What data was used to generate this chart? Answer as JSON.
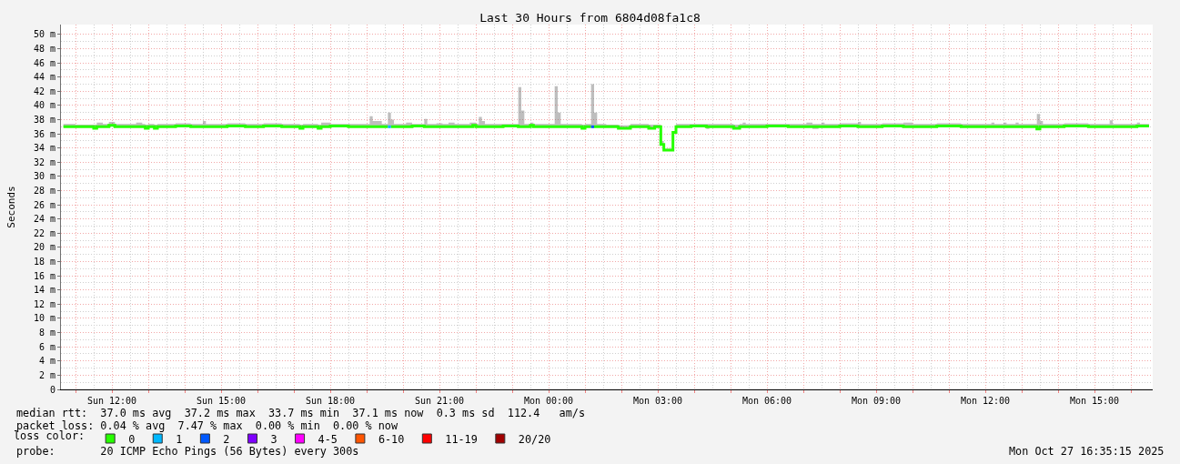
{
  "chart_data": {
    "type": "step",
    "title": "Last 30 Hours from 6804d08fa1c8",
    "ylabel": "Seconds",
    "legend_title": "loss color:",
    "legend": "bottom left",
    "grid": true,
    "xlim": [
      "2025-10-26T10:36",
      "2025-10-27T16:36"
    ],
    "xticks": [
      {
        "value": "2025-10-26T11:00",
        "label": null
      },
      {
        "value": "2025-10-26T12:00",
        "label": "Sun 12:00"
      },
      {
        "value": "2025-10-26T13:00",
        "label": null
      },
      {
        "value": "2025-10-26T14:00",
        "label": null
      },
      {
        "value": "2025-10-26T15:00",
        "label": "Sun 15:00"
      },
      {
        "value": "2025-10-26T16:00",
        "label": null
      },
      {
        "value": "2025-10-26T17:00",
        "label": null
      },
      {
        "value": "2025-10-26T18:00",
        "label": "Sun 18:00"
      },
      {
        "value": "2025-10-26T19:00",
        "label": null
      },
      {
        "value": "2025-10-26T20:00",
        "label": null
      },
      {
        "value": "2025-10-26T21:00",
        "label": "Sun 21:00"
      },
      {
        "value": "2025-10-26T22:00",
        "label": null
      },
      {
        "value": "2025-10-26T23:00",
        "label": null
      },
      {
        "value": "2025-10-27T00:00",
        "label": "Mon 00:00"
      },
      {
        "value": "2025-10-27T01:00",
        "label": null
      },
      {
        "value": "2025-10-27T02:00",
        "label": null
      },
      {
        "value": "2025-10-27T03:00",
        "label": "Mon 03:00"
      },
      {
        "value": "2025-10-27T04:00",
        "label": null
      },
      {
        "value": "2025-10-27T05:00",
        "label": null
      },
      {
        "value": "2025-10-27T06:00",
        "label": "Mon 06:00"
      },
      {
        "value": "2025-10-27T07:00",
        "label": null
      },
      {
        "value": "2025-10-27T08:00",
        "label": null
      },
      {
        "value": "2025-10-27T09:00",
        "label": "Mon 09:00"
      },
      {
        "value": "2025-10-27T10:00",
        "label": null
      },
      {
        "value": "2025-10-27T11:00",
        "label": null
      },
      {
        "value": "2025-10-27T12:00",
        "label": "Mon 12:00"
      },
      {
        "value": "2025-10-27T13:00",
        "label": null
      },
      {
        "value": "2025-10-27T14:00",
        "label": null
      },
      {
        "value": "2025-10-27T15:00",
        "label": "Mon 15:00"
      },
      {
        "value": "2025-10-27T16:00",
        "label": null
      }
    ],
    "ylim": [
      0,
      51.4
    ],
    "yticks": [
      0,
      {
        "value": 2,
        "label": "2 m"
      },
      {
        "value": 4,
        "label": "4 m"
      },
      {
        "value": 6,
        "label": "6 m"
      },
      {
        "value": 8,
        "label": "8 m"
      },
      {
        "value": 10,
        "label": "10 m"
      },
      {
        "value": 12,
        "label": "12 m"
      },
      {
        "value": 14,
        "label": "14 m"
      },
      {
        "value": 16,
        "label": "16 m"
      },
      {
        "value": 18,
        "label": "18 m"
      },
      {
        "value": 20,
        "label": "20 m"
      },
      {
        "value": 22,
        "label": "22 m"
      },
      {
        "value": 24,
        "label": "24 m"
      },
      {
        "value": 26,
        "label": "26 m"
      },
      {
        "value": 28,
        "label": "28 m"
      },
      {
        "value": 30,
        "label": "30 m"
      },
      {
        "value": 32,
        "label": "32 m"
      },
      {
        "value": 34,
        "label": "34 m"
      },
      {
        "value": 36,
        "label": "36 m"
      },
      {
        "value": 38,
        "label": "38 m"
      },
      {
        "value": 40,
        "label": "40 m"
      },
      {
        "value": 42,
        "label": "42 m"
      },
      {
        "value": 44,
        "label": "44 m"
      },
      {
        "value": 46,
        "label": "46 m"
      },
      {
        "value": 48,
        "label": "48 m"
      },
      {
        "value": 50,
        "label": "50 m"
      }
    ],
    "x": [
      "2025-10-26T10:40",
      "2025-10-26T11:00",
      "2025-10-26T11:30",
      "2025-10-26T11:35",
      "2025-10-26T11:45",
      "2025-10-26T11:55",
      "2025-10-26T12:05",
      "2025-10-26T12:40",
      "2025-10-26T12:50",
      "2025-10-26T12:55",
      "2025-10-26T13:00",
      "2025-10-26T13:10",
      "2025-10-26T13:15",
      "2025-10-26T13:45",
      "2025-10-26T14:10",
      "2025-10-26T14:30",
      "2025-10-26T14:35",
      "2025-10-26T15:10",
      "2025-10-26T15:40",
      "2025-10-26T16:10",
      "2025-10-26T16:40",
      "2025-10-26T17:10",
      "2025-10-26T17:15",
      "2025-10-26T17:40",
      "2025-10-26T17:45",
      "2025-10-26T18:00",
      "2025-10-26T18:30",
      "2025-10-26T19:05",
      "2025-10-26T19:10",
      "2025-10-26T19:25",
      "2025-10-26T19:35",
      "2025-10-26T19:37",
      "2025-10-26T19:40",
      "2025-10-26T19:45",
      "2025-10-26T20:05",
      "2025-10-26T20:15",
      "2025-10-26T20:35",
      "2025-10-26T20:40",
      "2025-10-26T20:55",
      "2025-10-26T21:05",
      "2025-10-26T21:15",
      "2025-10-26T21:25",
      "2025-10-26T21:50",
      "2025-10-26T21:55",
      "2025-10-26T22:00",
      "2025-10-26T22:05",
      "2025-10-26T22:10",
      "2025-10-26T22:15",
      "2025-10-26T22:45",
      "2025-10-26T23:10",
      "2025-10-26T23:15",
      "2025-10-26T23:20",
      "2025-10-26T23:30",
      "2025-10-26T23:35",
      "2025-10-27T00:10",
      "2025-10-27T00:15",
      "2025-10-27T00:20",
      "2025-10-27T00:55",
      "2025-10-27T01:00",
      "2025-10-27T01:10",
      "2025-10-27T01:12",
      "2025-10-27T01:15",
      "2025-10-27T01:20",
      "2025-10-27T01:35",
      "2025-10-27T01:55",
      "2025-10-27T02:15",
      "2025-10-27T02:45",
      "2025-10-27T02:55",
      "2025-10-27T03:05",
      "2025-10-27T03:10",
      "2025-10-27T03:25",
      "2025-10-27T03:30",
      "2025-10-27T03:55",
      "2025-10-27T04:20",
      "2025-10-27T04:25",
      "2025-10-27T05:05",
      "2025-10-27T05:15",
      "2025-10-27T05:20",
      "2025-10-27T05:25",
      "2025-10-27T06:00",
      "2025-10-27T06:35",
      "2025-10-27T07:05",
      "2025-10-27T07:15",
      "2025-10-27T07:25",
      "2025-10-27T07:30",
      "2025-10-27T07:35",
      "2025-10-27T08:00",
      "2025-10-27T08:30",
      "2025-10-27T08:35",
      "2025-10-27T09:10",
      "2025-10-27T09:45",
      "2025-10-27T10:00",
      "2025-10-27T10:40",
      "2025-10-27T11:20",
      "2025-10-27T12:10",
      "2025-10-27T12:15",
      "2025-10-27T12:30",
      "2025-10-27T12:35",
      "2025-10-27T12:50",
      "2025-10-27T12:55",
      "2025-10-27T13:25",
      "2025-10-27T13:30",
      "2025-10-27T13:35",
      "2025-10-27T14:10",
      "2025-10-27T14:50",
      "2025-10-27T15:25",
      "2025-10-27T15:30",
      "2025-10-27T16:10",
      "2025-10-27T16:15",
      "2025-10-27T16:30"
    ],
    "series": [
      {
        "name": "0",
        "color": "#26ff00",
        "values": [
          37.0,
          37.0,
          36.8,
          37.0,
          37.0,
          37.2,
          37.0,
          37.0,
          37.0,
          36.8,
          37.0,
          36.8,
          37.0,
          37.1,
          37.0,
          37.0,
          37.0,
          37.1,
          37.0,
          37.1,
          37.0,
          36.8,
          37.0,
          36.8,
          37.0,
          37.1,
          37.0,
          37.0,
          37.0,
          37.0,
          37.0,
          null,
          37.0,
          37.0,
          37.0,
          37.1,
          37.0,
          37.0,
          37.0,
          37.0,
          37.0,
          37.0,
          37.0,
          37.2,
          37.0,
          37.0,
          37.0,
          37.0,
          37.1,
          37.0,
          37.0,
          37.0,
          37.2,
          37.0,
          37.0,
          37.0,
          37.0,
          36.8,
          37.0,
          37.0,
          null,
          37.0,
          37.0,
          37.0,
          36.8,
          37.0,
          36.8,
          37.0,
          34.5,
          33.7,
          36.2,
          37.0,
          37.1,
          37.0,
          37.0,
          36.8,
          37.0,
          37.0,
          37.0,
          37.1,
          37.0,
          37.0,
          37.0,
          37.0,
          37.0,
          37.0,
          37.1,
          37.0,
          37.0,
          37.1,
          37.0,
          37.0,
          37.1,
          37.0,
          37.0,
          37.0,
          37.0,
          37.0,
          37.0,
          37.0,
          36.7,
          37.0,
          37.0,
          37.1,
          37.0,
          37.0,
          37.0,
          37.1,
          37.1,
          37.1
        ],
        "lower": [
          37.0,
          37.0,
          36.8,
          37.0,
          37.0,
          37.2,
          37.0,
          37.0,
          37.0,
          36.8,
          37.0,
          36.8,
          37.0,
          37.1,
          37.0,
          37.0,
          37.0,
          37.1,
          37.0,
          37.1,
          37.0,
          36.8,
          37.0,
          36.8,
          37.0,
          37.1,
          37.0,
          37.0,
          37.0,
          37.0,
          37.0,
          37.0,
          37.0,
          37.0,
          37.0,
          37.1,
          37.0,
          37.0,
          37.0,
          37.0,
          37.0,
          37.0,
          37.0,
          37.2,
          37.0,
          37.0,
          37.0,
          37.0,
          37.1,
          37.0,
          37.0,
          37.0,
          37.2,
          37.0,
          37.0,
          37.0,
          37.0,
          36.8,
          37.0,
          37.0,
          37.0,
          37.0,
          37.0,
          37.0,
          36.8,
          37.0,
          36.8,
          37.0,
          34.5,
          33.7,
          36.2,
          37.0,
          37.1,
          36.7,
          37.0,
          36.8,
          37.0,
          37.0,
          37.0,
          37.1,
          37.0,
          37.0,
          36.7,
          37.0,
          37.0,
          37.0,
          37.1,
          37.0,
          37.0,
          37.1,
          37.0,
          37.0,
          37.1,
          37.0,
          37.0,
          37.0,
          37.0,
          37.0,
          37.0,
          37.0,
          36.7,
          37.0,
          37.0,
          37.1,
          37.0,
          37.0,
          37.0,
          37.1,
          37.1,
          37.1
        ],
        "upper": [
          37.4,
          37.3,
          37.3,
          37.6,
          37.4,
          37.7,
          37.4,
          37.6,
          37.4,
          37.3,
          37.4,
          37.3,
          37.4,
          37.5,
          37.4,
          37.8,
          37.4,
          37.5,
          37.4,
          37.5,
          37.4,
          37.3,
          37.4,
          37.3,
          37.6,
          37.4,
          37.4,
          38.5,
          37.8,
          37.4,
          39.0,
          39.0,
          38.0,
          37.4,
          37.6,
          37.4,
          38.1,
          37.4,
          37.5,
          37.4,
          37.6,
          37.4,
          37.6,
          37.6,
          37.4,
          38.4,
          37.8,
          37.4,
          37.4,
          42.6,
          39.3,
          37.4,
          37.6,
          37.4,
          42.7,
          39.0,
          37.4,
          37.3,
          37.4,
          43.0,
          43.0,
          39.0,
          37.4,
          37.3,
          37.2,
          37.4,
          37.3,
          37.3,
          35.0,
          33.9,
          36.3,
          37.4,
          37.4,
          37.4,
          37.4,
          37.3,
          37.4,
          37.6,
          37.4,
          37.4,
          37.4,
          37.6,
          37.4,
          37.4,
          37.6,
          37.4,
          37.5,
          37.7,
          37.4,
          37.5,
          37.6,
          37.4,
          37.5,
          37.4,
          37.6,
          37.4,
          37.6,
          37.4,
          37.6,
          37.4,
          38.8,
          37.8,
          37.4,
          37.5,
          37.4,
          37.9,
          37.4,
          37.6,
          37.4,
          37.4
        ]
      },
      {
        "name": "1",
        "color": "#00b8ff",
        "x": [
          "2025-10-26T19:35",
          "2025-10-26T19:40"
        ],
        "values": [
          37.0,
          37.0
        ]
      },
      {
        "name": "2",
        "color": "#0059ff",
        "x": [
          "2025-10-27T01:10",
          "2025-10-27T01:15"
        ],
        "values": [
          37.0,
          37.0
        ]
      },
      {
        "name": "3",
        "color": "#7e00ff",
        "values": [
          null,
          null,
          null,
          null,
          null,
          null,
          null,
          null,
          null,
          null,
          null,
          null,
          null,
          null,
          null,
          null,
          null,
          null,
          null,
          null,
          null,
          null,
          null,
          null,
          null,
          null,
          null,
          null,
          null,
          null,
          null,
          null,
          null,
          null,
          null,
          null,
          null,
          null,
          null,
          null,
          null,
          null,
          null,
          null,
          null,
          null,
          null,
          null,
          null,
          null,
          null,
          null,
          null,
          null,
          null,
          null,
          null,
          null,
          null,
          null,
          null,
          null,
          null,
          null,
          null,
          null,
          null,
          null,
          null,
          null,
          null,
          null,
          null,
          null,
          null,
          null,
          null,
          null,
          null,
          null,
          null,
          null,
          null,
          null,
          null,
          null,
          null,
          null,
          null,
          null,
          null,
          null,
          null,
          null,
          null,
          null,
          null,
          null,
          null,
          null,
          null,
          null,
          null,
          null,
          null,
          null,
          null,
          null,
          null,
          null
        ]
      },
      {
        "name": "4-5",
        "color": "#ff00ff",
        "values": [
          null,
          null,
          null,
          null,
          null,
          null,
          null,
          null,
          null,
          null,
          null,
          null,
          null,
          null,
          null,
          null,
          null,
          null,
          null,
          null,
          null,
          null,
          null,
          null,
          null,
          null,
          null,
          null,
          null,
          null,
          null,
          null,
          null,
          null,
          null,
          null,
          null,
          null,
          null,
          null,
          null,
          null,
          null,
          null,
          null,
          null,
          null,
          null,
          null,
          null,
          null,
          null,
          null,
          null,
          null,
          null,
          null,
          null,
          null,
          null,
          null,
          null,
          null,
          null,
          null,
          null,
          null,
          null,
          null,
          null,
          null,
          null,
          null,
          null,
          null,
          null,
          null,
          null,
          null,
          null,
          null,
          null,
          null,
          null,
          null,
          null,
          null,
          null,
          null,
          null,
          null,
          null,
          null,
          null,
          null,
          null,
          null,
          null,
          null,
          null,
          null,
          null,
          null,
          null,
          null,
          null,
          null,
          null,
          null,
          null
        ]
      },
      {
        "name": "6-10",
        "color": "#ff5500",
        "values": [
          null,
          null,
          null,
          null,
          null,
          null,
          null,
          null,
          null,
          null,
          null,
          null,
          null,
          null,
          null,
          null,
          null,
          null,
          null,
          null,
          null,
          null,
          null,
          null,
          null,
          null,
          null,
          null,
          null,
          null,
          null,
          null,
          null,
          null,
          null,
          null,
          null,
          null,
          null,
          null,
          null,
          null,
          null,
          null,
          null,
          null,
          null,
          null,
          null,
          null,
          null,
          null,
          null,
          null,
          null,
          null,
          null,
          null,
          null,
          null,
          null,
          null,
          null,
          null,
          null,
          null,
          null,
          null,
          null,
          null,
          null,
          null,
          null,
          null,
          null,
          null,
          null,
          null,
          null,
          null,
          null,
          null,
          null,
          null,
          null,
          null,
          null,
          null,
          null,
          null,
          null,
          null,
          null,
          null,
          null,
          null,
          null,
          null,
          null,
          null,
          null,
          null,
          null,
          null,
          null,
          null,
          null,
          null,
          null,
          null
        ]
      },
      {
        "name": "11-19",
        "color": "#ff0000",
        "values": [
          null,
          null,
          null,
          null,
          null,
          null,
          null,
          null,
          null,
          null,
          null,
          null,
          null,
          null,
          null,
          null,
          null,
          null,
          null,
          null,
          null,
          null,
          null,
          null,
          null,
          null,
          null,
          null,
          null,
          null,
          null,
          null,
          null,
          null,
          null,
          null,
          null,
          null,
          null,
          null,
          null,
          null,
          null,
          null,
          null,
          null,
          null,
          null,
          null,
          null,
          null,
          null,
          null,
          null,
          null,
          null,
          null,
          null,
          null,
          null,
          null,
          null,
          null,
          null,
          null,
          null,
          null,
          null,
          null,
          null,
          null,
          null,
          null,
          null,
          null,
          null,
          null,
          null,
          null,
          null,
          null,
          null,
          null,
          null,
          null,
          null,
          null,
          null,
          null,
          null,
          null,
          null,
          null,
          null,
          null,
          null,
          null,
          null,
          null,
          null,
          null,
          null,
          null,
          null,
          null,
          null,
          null,
          null,
          null,
          null
        ]
      },
      {
        "name": "20/20",
        "color": "#a10000",
        "values": [
          null,
          null,
          null,
          null,
          null,
          null,
          null,
          null,
          null,
          null,
          null,
          null,
          null,
          null,
          null,
          null,
          null,
          null,
          null,
          null,
          null,
          null,
          null,
          null,
          null,
          null,
          null,
          null,
          null,
          null,
          null,
          null,
          null,
          null,
          null,
          null,
          null,
          null,
          null,
          null,
          null,
          null,
          null,
          null,
          null,
          null,
          null,
          null,
          null,
          null,
          null,
          null,
          null,
          null,
          null,
          null,
          null,
          null,
          null,
          null,
          null,
          null,
          null,
          null,
          null,
          null,
          null,
          null,
          null,
          null,
          null,
          null,
          null,
          null,
          null,
          null,
          null,
          null,
          null,
          null,
          null,
          null,
          null,
          null,
          null,
          null,
          null,
          null,
          null,
          null,
          null,
          null,
          null,
          null,
          null,
          null,
          null,
          null,
          null,
          null,
          null,
          null,
          null,
          null,
          null,
          null,
          null,
          null,
          null,
          null
        ]
      }
    ],
    "annotations": [
      "median rtt:  37.0 ms avg  37.2 ms max  33.7 ms min  37.1 ms now  0.3 ms sd  112.4   am/s",
      "packet loss: 0.04 % avg  7.47 % max  0.00 % min  0.00 % now",
      "probe:       20 ICMP Echo Pings (56 Bytes) every 300s",
      "Mon Oct 27 16:35:15 2025"
    ]
  }
}
